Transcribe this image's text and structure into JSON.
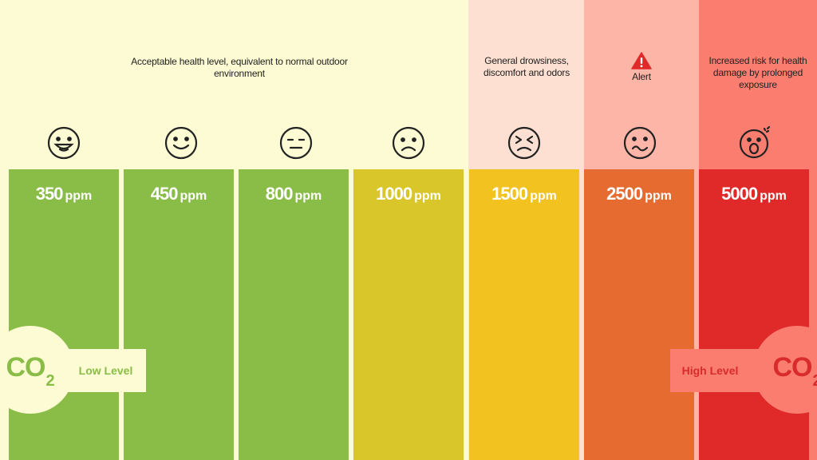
{
  "descriptions": {
    "acceptable": "Acceptable health level, equivalent to normal outdoor environment",
    "drowsiness": "General drowsiness, discomfort and odors",
    "alert": "Alert",
    "risk": "Increased risk for health damage by prolonged exposure"
  },
  "zone_colors": [
    "#fcfbd3",
    "#fde0d2",
    "#fcb5a6",
    "#fb7d70"
  ],
  "levels": [
    {
      "value": "350",
      "unit": "ppm",
      "color": "#8abd48",
      "face": "grinning-face-icon"
    },
    {
      "value": "450",
      "unit": "ppm",
      "color": "#8abd48",
      "face": "smiling-face-icon"
    },
    {
      "value": "800",
      "unit": "ppm",
      "color": "#8abd48",
      "face": "neutral-face-icon"
    },
    {
      "value": "1000",
      "unit": "ppm",
      "color": "#d9c62a",
      "face": "frowning-face-icon"
    },
    {
      "value": "1500",
      "unit": "ppm",
      "color": "#f2c220",
      "face": "squinting-face-icon"
    },
    {
      "value": "2500",
      "unit": "ppm",
      "color": "#e56b31",
      "face": "woozy-face-icon"
    },
    {
      "value": "5000",
      "unit": "ppm",
      "color": "#e02a2a",
      "face": "shocked-face-icon"
    }
  ],
  "low_label": "Low Level",
  "high_label": "High Level",
  "co2_main": "CO",
  "co2_sub": "2",
  "alert_icon": "warning-triangle-icon"
}
